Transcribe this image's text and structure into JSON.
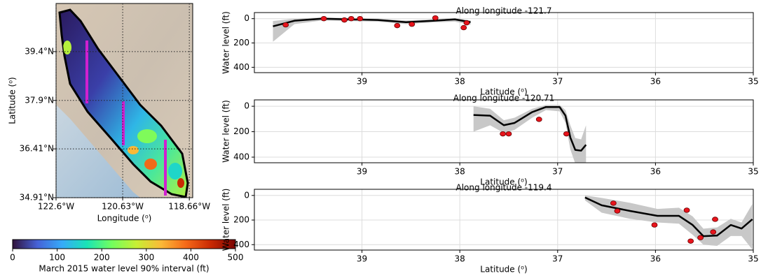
{
  "chart_data": [
    {
      "type": "map",
      "xlabel": "Longitude (⁰)",
      "ylabel": "Latitude (⁰)",
      "xlim": [
        -122.6,
        -118.56
      ],
      "ylim": [
        34.91,
        40.88
      ],
      "xticks": [
        {
          "value": -122.6,
          "label": "122.6°W"
        },
        {
          "value": -120.63,
          "label": "120.63°W"
        },
        {
          "value": -118.66,
          "label": "118.66°W"
        }
      ],
      "yticks": [
        {
          "value": 34.91,
          "label": "34.91°N"
        },
        {
          "value": 36.41,
          "label": "36.41°N"
        },
        {
          "value": 37.9,
          "label": "37.9°N"
        },
        {
          "value": 39.4,
          "label": "39.4°N"
        }
      ]
    },
    {
      "type": "colorbar",
      "label": "March 2015 water level 90% interval (ft)",
      "xlim": [
        0,
        500
      ],
      "xticks": [
        0,
        100,
        200,
        300,
        400,
        500
      ],
      "colors": [
        "#30123b",
        "#4662d7",
        "#36aaf9",
        "#1ae4b6",
        "#72fe5e",
        "#c7ef34",
        "#fbb938",
        "#f56918",
        "#c92903",
        "#7a0403"
      ]
    },
    {
      "type": "line",
      "title": "Along longitude -121.7",
      "xlabel": "Latitude (⁰)",
      "ylabel": "Water level (ft)",
      "xlim": [
        40.1,
        35
      ],
      "ylim": [
        444,
        -50
      ],
      "xticks": [
        39,
        38,
        37,
        36,
        35
      ],
      "yticks": [
        0,
        200,
        400
      ],
      "grid": true,
      "x": [
        39.91,
        39.69,
        39.41,
        39.12,
        38.84,
        38.55,
        38.26,
        38.05,
        37.89
      ],
      "series": [
        {
          "color": "#000000",
          "band_color": "#c8c8c8",
          "values": [
            63,
            17,
            0,
            6,
            11,
            29,
            17,
            6,
            29
          ],
          "lower": [
            20,
            0,
            -10,
            -5,
            0,
            15,
            5,
            -5,
            15
          ],
          "upper": [
            190,
            45,
            15,
            20,
            25,
            45,
            30,
            25,
            50
          ]
        }
      ],
      "points": {
        "color": "#e8141c",
        "x": [
          39.78,
          39.39,
          39.18,
          39.11,
          39.02,
          38.64,
          38.49,
          38.25,
          37.96,
          37.93
        ],
        "values": [
          51,
          0,
          11,
          0,
          0,
          57,
          46,
          -6,
          74,
          34
        ]
      }
    },
    {
      "type": "line",
      "title": "Along longitude -120.71",
      "xlabel": "Latitude (⁰)",
      "ylabel": "Water level (ft)",
      "xlim": [
        40.1,
        35
      ],
      "ylim": [
        444,
        -50
      ],
      "xticks": [
        39,
        38,
        37,
        36,
        35
      ],
      "yticks": [
        0,
        200,
        400
      ],
      "grid": true,
      "x": [
        37.86,
        37.69,
        37.55,
        37.44,
        37.26,
        37.12,
        36.98,
        36.92,
        36.87,
        36.82,
        36.76,
        36.71
      ],
      "series": [
        {
          "color": "#000000",
          "band_color": "#c8c8c8",
          "values": [
            69,
            74,
            149,
            131,
            46,
            6,
            6,
            74,
            246,
            343,
            349,
            303
          ],
          "lower": [
            0,
            20,
            110,
            90,
            20,
            -10,
            -10,
            30,
            150,
            250,
            260,
            150
          ],
          "upper": [
            200,
            150,
            210,
            185,
            90,
            30,
            40,
            130,
            340,
            450,
            450,
            450
          ]
        }
      ],
      "points": {
        "color": "#e8141c",
        "x": [
          37.56,
          37.5,
          37.19,
          36.91
        ],
        "values": [
          217,
          217,
          103,
          217
        ]
      }
    },
    {
      "type": "line",
      "title": "Along longitude -119.4",
      "xlabel": "Latitude (⁰)",
      "ylabel": "Water level (ft)",
      "xlim": [
        40.1,
        35
      ],
      "ylim": [
        444,
        -50
      ],
      "xticks": [
        39,
        38,
        37,
        36,
        35
      ],
      "yticks": [
        0,
        200,
        400
      ],
      "grid": true,
      "x": [
        36.72,
        36.55,
        36.26,
        35.98,
        35.76,
        35.62,
        35.51,
        35.37,
        35.23,
        35.12,
        35.01
      ],
      "series": [
        {
          "color": "#000000",
          "band_color": "#c8c8c8",
          "values": [
            17,
            80,
            126,
            166,
            166,
            240,
            331,
            326,
            240,
            269,
            194
          ],
          "lower": [
            0,
            20,
            60,
            110,
            100,
            170,
            270,
            260,
            190,
            220,
            70
          ],
          "upper": [
            40,
            140,
            190,
            220,
            230,
            320,
            400,
            410,
            330,
            330,
            440
          ]
        }
      ],
      "points": {
        "color": "#e8141c",
        "x": [
          36.43,
          36.39,
          36.01,
          35.68,
          35.64,
          35.54,
          35.41,
          35.39
        ],
        "values": [
          63,
          126,
          240,
          120,
          371,
          343,
          297,
          194
        ]
      }
    }
  ]
}
